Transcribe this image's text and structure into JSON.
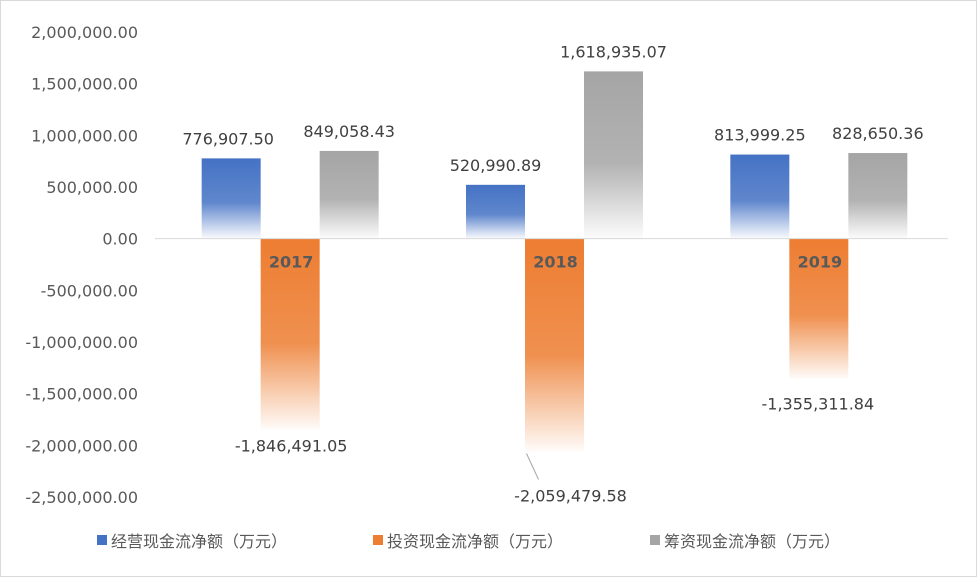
{
  "chart_data": {
    "type": "bar",
    "categories": [
      "2017",
      "2018",
      "2019"
    ],
    "series": [
      {
        "name": "经营现金流净额（万元）",
        "values": [
          776907.5,
          520990.89,
          813999.25
        ],
        "color": "#4472c4",
        "labels": [
          "776,907.50",
          "520,990.89",
          "813,999.25"
        ]
      },
      {
        "name": "投资现金流净额（万元）",
        "values": [
          -1846491.05,
          -2059479.58,
          -1355311.84
        ],
        "color": "#ed7d31",
        "labels": [
          "-1,846,491.05",
          "-2,059,479.58",
          "-1,355,311.84"
        ]
      },
      {
        "name": "筹资现金流净额（万元）",
        "values": [
          849058.43,
          1618935.07,
          828650.36
        ],
        "color": "#a5a5a5",
        "labels": [
          "849,058.43",
          "1,618,935.07",
          "828,650.36"
        ]
      }
    ],
    "y_ticks": [
      {
        "value": 2000000,
        "label": "2,000,000.00"
      },
      {
        "value": 1500000,
        "label": "1,500,000.00"
      },
      {
        "value": 1000000,
        "label": "1,000,000.00"
      },
      {
        "value": 500000,
        "label": "500,000.00"
      },
      {
        "value": 0,
        "label": "0.00"
      },
      {
        "value": -500000,
        "label": "-500,000.00"
      },
      {
        "value": -1000000,
        "label": "-1,000,000.00"
      },
      {
        "value": -1500000,
        "label": "-1,500,000.00"
      },
      {
        "value": -2000000,
        "label": "-2,000,000.00"
      },
      {
        "value": -2500000,
        "label": "-2,500,000.00"
      }
    ],
    "ylim": [
      -2500000,
      2000000
    ],
    "grid": false,
    "legend": "bottom",
    "bar_style": "gradient-fade"
  }
}
